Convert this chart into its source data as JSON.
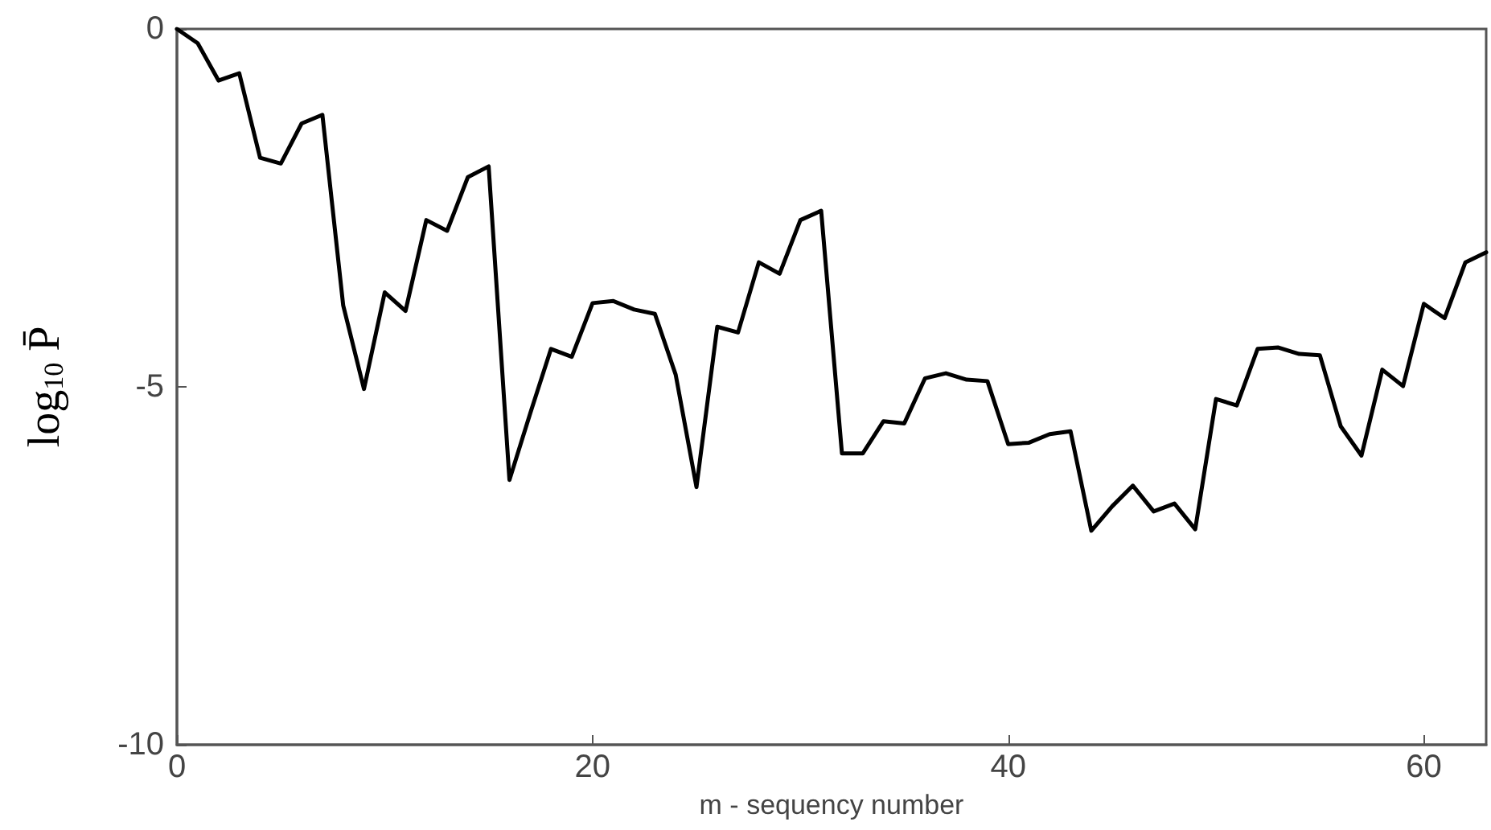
{
  "chart_data": {
    "type": "line",
    "xlabel": "m - sequency number",
    "ylabel": "log$_{10}$ P̄",
    "x": [
      0,
      1,
      2,
      3,
      4,
      5,
      6,
      7,
      8,
      9,
      10,
      11,
      12,
      13,
      14,
      15,
      16,
      17,
      18,
      19,
      20,
      21,
      22,
      23,
      24,
      25,
      26,
      27,
      28,
      29,
      30,
      31,
      32,
      33,
      34,
      35,
      36,
      37,
      38,
      39,
      40,
      41,
      42,
      43,
      44,
      45,
      46,
      47,
      48,
      49,
      50,
      51,
      52,
      53,
      54,
      55,
      56,
      57,
      58,
      59,
      60,
      61,
      62,
      63
    ],
    "series": [
      {
        "color": "#000000",
        "values": [
          0,
          -0.2,
          -0.72,
          -0.62,
          -1.8,
          -1.88,
          -1.32,
          -1.2,
          -3.86,
          -5.03,
          -3.68,
          -3.94,
          -2.67,
          -2.82,
          -2.07,
          -1.92,
          -6.3,
          -5.37,
          -4.47,
          -4.58,
          -3.83,
          -3.8,
          -3.92,
          -3.98,
          -4.83,
          -6.4,
          -4.16,
          -4.24,
          -3.26,
          -3.42,
          -2.67,
          -2.54,
          -5.93,
          -5.93,
          -5.48,
          -5.51,
          -4.88,
          -4.81,
          -4.9,
          -4.92,
          -5.8,
          -5.78,
          -5.66,
          -5.62,
          -7.01,
          -6.67,
          -6.38,
          -6.74,
          -6.63,
          -6.99,
          -5.17,
          -5.26,
          -4.47,
          -4.45,
          -4.54,
          -4.56,
          -5.55,
          -5.96,
          -4.76,
          -4.99,
          -3.84,
          -4.04,
          -3.26,
          -3.12
        ]
      }
    ],
    "xlim": [
      0,
      63
    ],
    "xticks": [
      0,
      20,
      40,
      60
    ],
    "ylim": [
      -10,
      0
    ],
    "yticks": [
      -10,
      -5,
      0
    ],
    "grid": false,
    "marker": "none",
    "line_style": "solid"
  }
}
